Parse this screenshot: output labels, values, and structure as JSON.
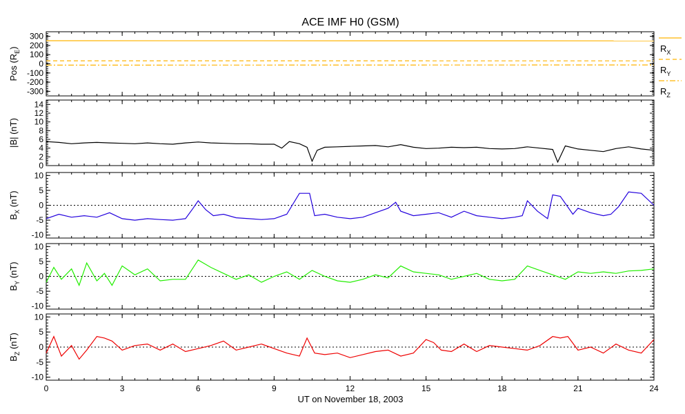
{
  "title": "ACE IMF H0 (GSM)",
  "x_axis_label": "UT on November 18, 2003",
  "chart_data": [
    {
      "type": "line",
      "panel": "position",
      "ylabel_main": "Pos (R",
      "ylabel_sub": "E",
      "ylabel_tail": ")",
      "ylim": [
        -350,
        350
      ],
      "y_ticks": [
        "300",
        "200",
        "100",
        "0",
        "-100",
        "-200",
        "-300"
      ],
      "y_tick_values": [
        300,
        200,
        100,
        0,
        -100,
        -200,
        -300
      ],
      "zero_line": false,
      "series": [
        {
          "name": "R",
          "sub": "X",
          "color": "#ffb300",
          "style": "solid",
          "x": [
            0,
            24
          ],
          "values": [
            252,
            251
          ]
        },
        {
          "name": "R",
          "sub": "Y",
          "color": "#ffb300",
          "style": "dashed",
          "x": [
            0,
            24
          ],
          "values": [
            33,
            32
          ]
        },
        {
          "name": "R",
          "sub": "Z",
          "color": "#ffb300",
          "style": "dashdot",
          "x": [
            0,
            24
          ],
          "values": [
            -14,
            -12
          ]
        }
      ]
    },
    {
      "type": "line",
      "panel": "btotal",
      "ylabel_main": "|B| (nT)",
      "ylabel_sub": "",
      "ylabel_tail": "",
      "ylim": [
        0,
        15
      ],
      "y_ticks": [
        "14",
        "12",
        "10",
        "8",
        "6",
        "4",
        "2",
        "0"
      ],
      "y_tick_values": [
        14,
        12,
        10,
        8,
        6,
        4,
        2,
        0
      ],
      "zero_line": false,
      "series": [
        {
          "name": "",
          "color": "#000000",
          "x": [
            0,
            0.5,
            1,
            1.5,
            2,
            2.5,
            3,
            3.5,
            4,
            4.5,
            5,
            5.5,
            6,
            6.5,
            7,
            7.5,
            8,
            8.5,
            9,
            9.3,
            9.6,
            10,
            10.3,
            10.5,
            10.7,
            11,
            11.5,
            12,
            12.5,
            13,
            13.5,
            14,
            14.5,
            15,
            15.5,
            16,
            16.5,
            17,
            17.5,
            18,
            18.5,
            19,
            19.5,
            20,
            20.2,
            20.5,
            21,
            21.5,
            22,
            22.5,
            23,
            23.5,
            24
          ],
          "values": [
            5.5,
            5.3,
            5.0,
            5.2,
            5.3,
            5.2,
            5.1,
            5.0,
            5.2,
            5.0,
            4.9,
            5.2,
            5.4,
            5.2,
            5.1,
            5.0,
            5.0,
            4.9,
            4.9,
            4.0,
            5.5,
            5.0,
            4.2,
            1.0,
            3.5,
            4.2,
            4.3,
            4.4,
            4.5,
            4.6,
            4.3,
            4.8,
            4.2,
            3.9,
            4.0,
            4.2,
            4.1,
            4.2,
            3.9,
            3.8,
            3.9,
            4.3,
            4.0,
            3.7,
            0.8,
            4.5,
            3.8,
            3.5,
            3.2,
            3.9,
            4.3,
            3.8,
            3.5
          ]
        }
      ]
    },
    {
      "type": "line",
      "panel": "bx",
      "ylabel_main": "B",
      "ylabel_sub": "X",
      "ylabel_tail": " (nT)",
      "ylim": [
        -11,
        11
      ],
      "y_ticks": [
        "10",
        "5",
        "0",
        "-5",
        "-10"
      ],
      "y_tick_values": [
        10,
        5,
        0,
        -5,
        -10
      ],
      "zero_line": true,
      "series": [
        {
          "name": "",
          "color": "#2200dd",
          "x": [
            0,
            0.5,
            1,
            1.5,
            2,
            2.5,
            3,
            3.5,
            4,
            4.5,
            5,
            5.5,
            5.8,
            6,
            6.3,
            6.6,
            7,
            7.5,
            8,
            8.5,
            9,
            9.5,
            10,
            10.4,
            10.6,
            11,
            11.5,
            12,
            12.5,
            13,
            13.5,
            13.8,
            14,
            14.5,
            15,
            15.5,
            16,
            16.5,
            17,
            17.5,
            18,
            18.5,
            18.8,
            19,
            19.4,
            19.8,
            20,
            20.3,
            20.8,
            21,
            21.5,
            22,
            22.3,
            22.6,
            23,
            23.5,
            24
          ],
          "values": [
            -4.5,
            -3.0,
            -4.0,
            -3.5,
            -4.0,
            -2.5,
            -4.5,
            -5.0,
            -4.5,
            -4.8,
            -5.0,
            -4.5,
            -1.0,
            1.5,
            -1.5,
            -3.5,
            -3.0,
            -4.2,
            -4.5,
            -4.8,
            -4.5,
            -3.0,
            4.0,
            4.0,
            -3.5,
            -3.0,
            -4.0,
            -4.5,
            -4.0,
            -2.5,
            -1.0,
            1.0,
            -2.0,
            -3.5,
            -3.0,
            -2.5,
            -4.0,
            -2.0,
            -3.5,
            -4.0,
            -4.5,
            -4.0,
            -3.5,
            1.5,
            -2.0,
            -4.5,
            3.5,
            3.0,
            -3.0,
            -1.0,
            -2.5,
            -3.5,
            -3.0,
            -0.5,
            4.5,
            4.0,
            0.0
          ]
        }
      ]
    },
    {
      "type": "line",
      "panel": "by",
      "ylabel_main": "B",
      "ylabel_sub": "Y",
      "ylabel_tail": " (nT)",
      "ylim": [
        -11,
        11
      ],
      "y_ticks": [
        "10",
        "5",
        "0",
        "-5",
        "-10"
      ],
      "y_tick_values": [
        10,
        5,
        0,
        -5,
        -10
      ],
      "zero_line": true,
      "series": [
        {
          "name": "",
          "color": "#22ee00",
          "x": [
            0,
            0.3,
            0.6,
            1,
            1.3,
            1.6,
            2,
            2.3,
            2.6,
            3,
            3.5,
            4,
            4.5,
            5,
            5.5,
            6,
            6.5,
            7,
            7.5,
            8,
            8.5,
            9,
            9.5,
            10,
            10.5,
            11,
            11.5,
            12,
            12.5,
            13,
            13.5,
            14,
            14.5,
            15,
            15.5,
            16,
            16.5,
            17,
            17.5,
            18,
            18.5,
            19,
            19.5,
            20,
            20.5,
            21,
            21.5,
            22,
            22.5,
            23,
            23.5,
            24
          ],
          "values": [
            -2.0,
            3.0,
            -1.0,
            2.5,
            -3.0,
            4.5,
            -1.5,
            1.0,
            -3.0,
            3.5,
            0.5,
            2.5,
            -1.5,
            -1.0,
            -1.0,
            5.5,
            3.0,
            1.0,
            -1.0,
            0.5,
            -2.0,
            0.0,
            1.5,
            -1.0,
            2.0,
            0.0,
            -1.5,
            -2.0,
            -1.0,
            0.5,
            -0.5,
            3.5,
            1.5,
            1.0,
            0.5,
            -1.0,
            0.0,
            1.0,
            -1.0,
            -1.5,
            -1.0,
            3.5,
            2.0,
            0.5,
            -1.0,
            1.5,
            1.0,
            1.5,
            1.0,
            1.8,
            2.0,
            2.5
          ]
        }
      ]
    },
    {
      "type": "line",
      "panel": "bz",
      "ylabel_main": "B",
      "ylabel_sub": "Z",
      "ylabel_tail": " (nT)",
      "ylim": [
        -11,
        11
      ],
      "y_ticks": [
        "10",
        "5",
        "0",
        "-5",
        "-10"
      ],
      "y_tick_values": [
        10,
        5,
        0,
        -5,
        -10
      ],
      "zero_line": true,
      "series": [
        {
          "name": "",
          "color": "#ee0000",
          "x": [
            0,
            0.3,
            0.6,
            1,
            1.3,
            1.6,
            2,
            2.3,
            2.6,
            3,
            3.5,
            4,
            4.5,
            5,
            5.5,
            6,
            6.5,
            7,
            7.5,
            8,
            8.5,
            9,
            9.5,
            10,
            10.3,
            10.6,
            11,
            11.5,
            12,
            12.5,
            13,
            13.5,
            14,
            14.5,
            15,
            15.3,
            15.6,
            16,
            16.5,
            17,
            17.5,
            18,
            18.5,
            19,
            19.5,
            20,
            20.3,
            20.6,
            21,
            21.5,
            22,
            22.5,
            23,
            23.5,
            24
          ],
          "values": [
            -2.0,
            3.5,
            -3.0,
            0.5,
            -4.0,
            -1.0,
            3.5,
            3.0,
            2.0,
            -1.0,
            0.5,
            1.0,
            -1.0,
            1.0,
            -1.5,
            -0.5,
            0.5,
            2.0,
            -1.0,
            0.0,
            1.0,
            -0.5,
            -2.0,
            -3.0,
            3.0,
            -2.0,
            -2.5,
            -2.0,
            -3.5,
            -2.5,
            -1.5,
            -1.0,
            -3.0,
            -2.0,
            2.5,
            1.5,
            -1.0,
            -1.5,
            1.0,
            -1.5,
            0.5,
            0.0,
            -0.5,
            -1.0,
            0.5,
            3.5,
            3.0,
            3.5,
            -1.0,
            0.0,
            -2.0,
            1.0,
            -1.0,
            -2.0,
            2.5
          ]
        }
      ]
    }
  ],
  "x_ticks": [
    "0",
    "3",
    "6",
    "9",
    "12",
    "15",
    "18",
    "21",
    "24"
  ],
  "x_tick_values": [
    0,
    3,
    6,
    9,
    12,
    15,
    18,
    21,
    24
  ],
  "xlim": [
    0,
    24
  ]
}
